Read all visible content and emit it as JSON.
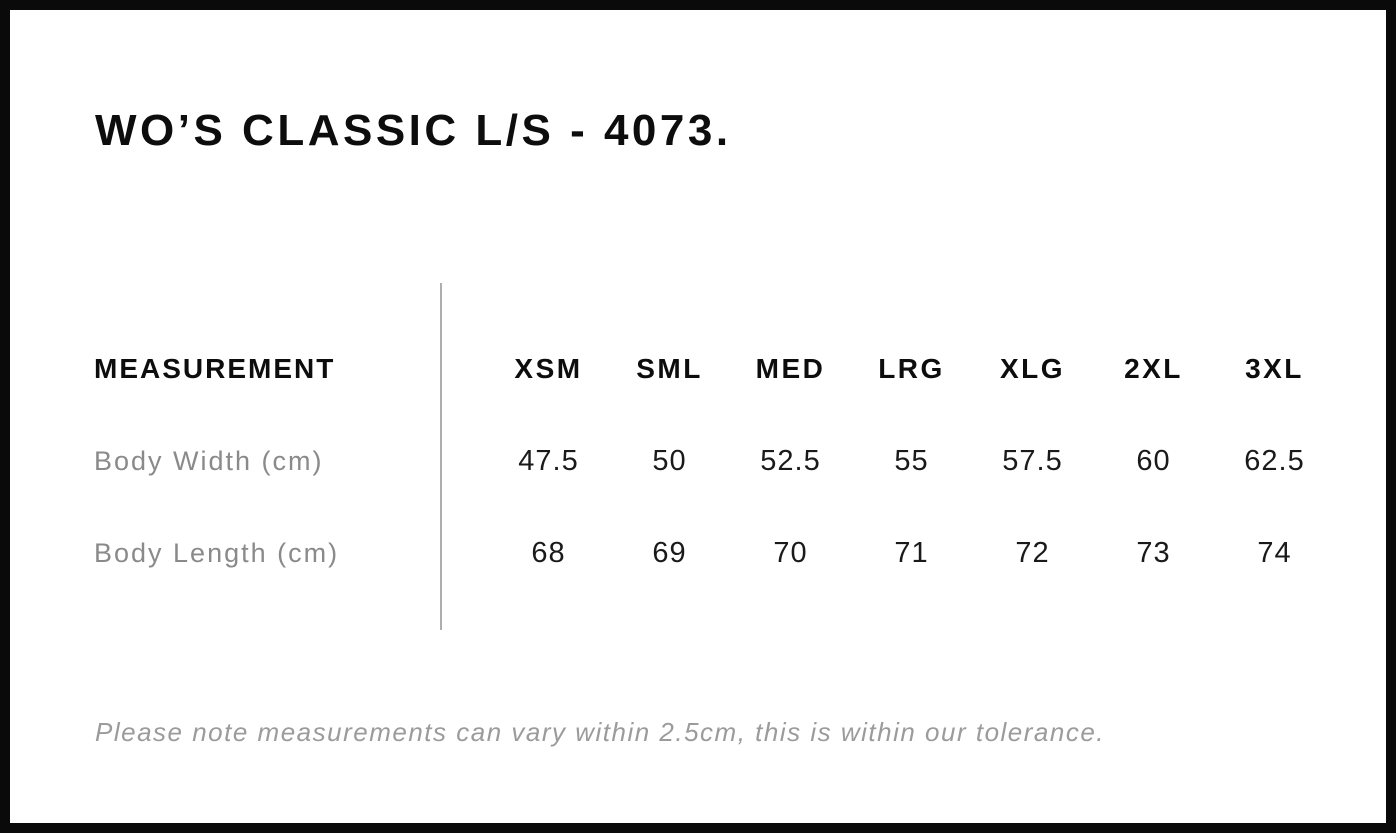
{
  "page": {
    "title": "WO’S CLASSIC L/S - 4073.",
    "note": "Please note measurements can vary within 2.5cm, this is within our tolerance."
  },
  "table": {
    "measurement_header": "MEASUREMENT",
    "size_headers": [
      "XSM",
      "SML",
      "MED",
      "LRG",
      "XLG",
      "2XL",
      "3XL"
    ],
    "rows": [
      {
        "label": "Body Width (cm)",
        "values": [
          "47.5",
          "50",
          "52.5",
          "55",
          "57.5",
          "60",
          "62.5"
        ]
      },
      {
        "label": "Body Length (cm)",
        "values": [
          "68",
          "69",
          "70",
          "71",
          "72",
          "73",
          "74"
        ]
      }
    ]
  },
  "colors": {
    "frame_border": "#0a0a0a",
    "heading_text": "#0d0d0d",
    "value_text": "#1a1a1a",
    "label_gray": "#8a8a8a",
    "note_gray": "#9b9b9b",
    "divider_gray": "#aeaeae",
    "background": "#ffffff"
  }
}
